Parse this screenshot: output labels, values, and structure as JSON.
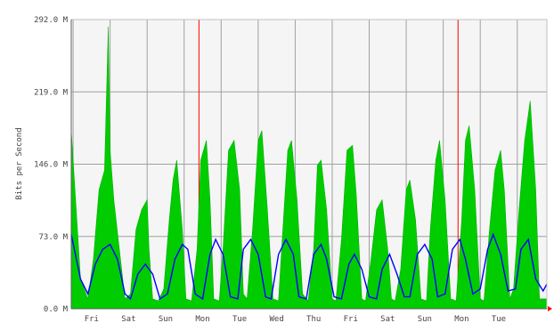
{
  "chart_data": {
    "type": "area",
    "title": "",
    "ylabel": "Bits per Second",
    "xlabel": "",
    "ylim": [
      0,
      292
    ],
    "yticks": [
      {
        "value": 0,
        "label": "0.0 M"
      },
      {
        "value": 73,
        "label": "73.0 M"
      },
      {
        "value": 146,
        "label": "146.0 M"
      },
      {
        "value": 219,
        "label": "219.0 M"
      },
      {
        "value": 292,
        "label": "292.0 M"
      }
    ],
    "days": [
      "Fri",
      "Sat",
      "Sun",
      "Mon",
      "Tue",
      "Wed",
      "Thu",
      "Fri",
      "Sat",
      "Sun",
      "Mon",
      "Tue"
    ],
    "x_start": -0.55,
    "x_end": 12.3,
    "grid": true,
    "week_markers": [
      2.9,
      9.9
    ],
    "series": [
      {
        "kind": "max-area",
        "x": [
          -0.55,
          -0.3,
          -0.1,
          0.05,
          0.2,
          0.35,
          0.45,
          0.5,
          0.6,
          0.75,
          0.9,
          1.05,
          1.2,
          1.35,
          1.5,
          1.55,
          1.65,
          1.8,
          1.95,
          2.1,
          2.2,
          2.3,
          2.45,
          2.55,
          2.7,
          2.85,
          2.95,
          3.1,
          3.2,
          3.3,
          3.45,
          3.55,
          3.7,
          3.85,
          4.0,
          4.1,
          4.2,
          4.35,
          4.5,
          4.6,
          4.75,
          4.9,
          5.05,
          5.15,
          5.3,
          5.4,
          5.55,
          5.7,
          5.85,
          6.0,
          6.1,
          6.2,
          6.35,
          6.5,
          6.6,
          6.75,
          6.9,
          7.05,
          7.15,
          7.3,
          7.4,
          7.55,
          7.7,
          7.85,
          8.0,
          8.1,
          8.2,
          8.35,
          8.5,
          8.6,
          8.75,
          8.9,
          9.05,
          9.15,
          9.3,
          9.4,
          9.55,
          9.7,
          9.85,
          10.0,
          10.1,
          10.2,
          10.35,
          10.5,
          10.6,
          10.75,
          10.9,
          11.05,
          11.15,
          11.3,
          11.4,
          11.55,
          11.7,
          11.85,
          12.0,
          12.1,
          12.3
        ],
        "y": [
          180,
          30,
          10,
          50,
          120,
          140,
          285,
          160,
          110,
          60,
          10,
          15,
          80,
          100,
          110,
          60,
          10,
          8,
          20,
          90,
          130,
          150,
          80,
          10,
          8,
          60,
          150,
          170,
          110,
          10,
          8,
          60,
          160,
          170,
          120,
          15,
          10,
          80,
          170,
          180,
          100,
          10,
          8,
          70,
          160,
          170,
          110,
          15,
          8,
          60,
          145,
          150,
          100,
          10,
          8,
          70,
          160,
          165,
          115,
          10,
          8,
          50,
          100,
          110,
          60,
          10,
          8,
          40,
          120,
          130,
          90,
          10,
          8,
          80,
          150,
          170,
          110,
          10,
          8,
          90,
          170,
          185,
          120,
          10,
          8,
          80,
          140,
          160,
          120,
          10,
          20,
          100,
          170,
          210,
          120,
          10,
          10
        ]
      },
      {
        "kind": "avg-line",
        "x": [
          -0.55,
          -0.3,
          -0.1,
          0.1,
          0.3,
          0.5,
          0.7,
          0.9,
          1.05,
          1.25,
          1.45,
          1.65,
          1.85,
          2.05,
          2.25,
          2.45,
          2.6,
          2.8,
          3.0,
          3.2,
          3.35,
          3.55,
          3.75,
          3.95,
          4.1,
          4.3,
          4.5,
          4.7,
          4.85,
          5.05,
          5.25,
          5.45,
          5.6,
          5.8,
          6.0,
          6.2,
          6.35,
          6.55,
          6.75,
          6.95,
          7.1,
          7.3,
          7.5,
          7.7,
          7.85,
          8.05,
          8.25,
          8.45,
          8.6,
          8.8,
          9.0,
          9.2,
          9.35,
          9.55,
          9.75,
          9.95,
          10.1,
          10.3,
          10.5,
          10.7,
          10.85,
          11.05,
          11.25,
          11.45,
          11.6,
          11.8,
          12.0,
          12.2,
          12.3
        ],
        "y": [
          75,
          30,
          15,
          45,
          60,
          65,
          50,
          15,
          10,
          35,
          45,
          35,
          10,
          15,
          50,
          65,
          60,
          15,
          10,
          55,
          70,
          55,
          12,
          10,
          60,
          70,
          55,
          12,
          10,
          55,
          70,
          55,
          12,
          10,
          55,
          65,
          50,
          12,
          10,
          45,
          55,
          40,
          12,
          10,
          40,
          55,
          35,
          12,
          12,
          55,
          65,
          50,
          12,
          15,
          60,
          70,
          50,
          15,
          20,
          60,
          75,
          55,
          18,
          20,
          60,
          70,
          30,
          18,
          25
        ]
      }
    ],
    "colors": {
      "area": "#00cc00",
      "avg_line": "#0000ff",
      "background": "#f5f5f5",
      "grid": "#a0a0a0",
      "week_marker": "#ff0000",
      "frame": "#c0c0c0"
    }
  }
}
